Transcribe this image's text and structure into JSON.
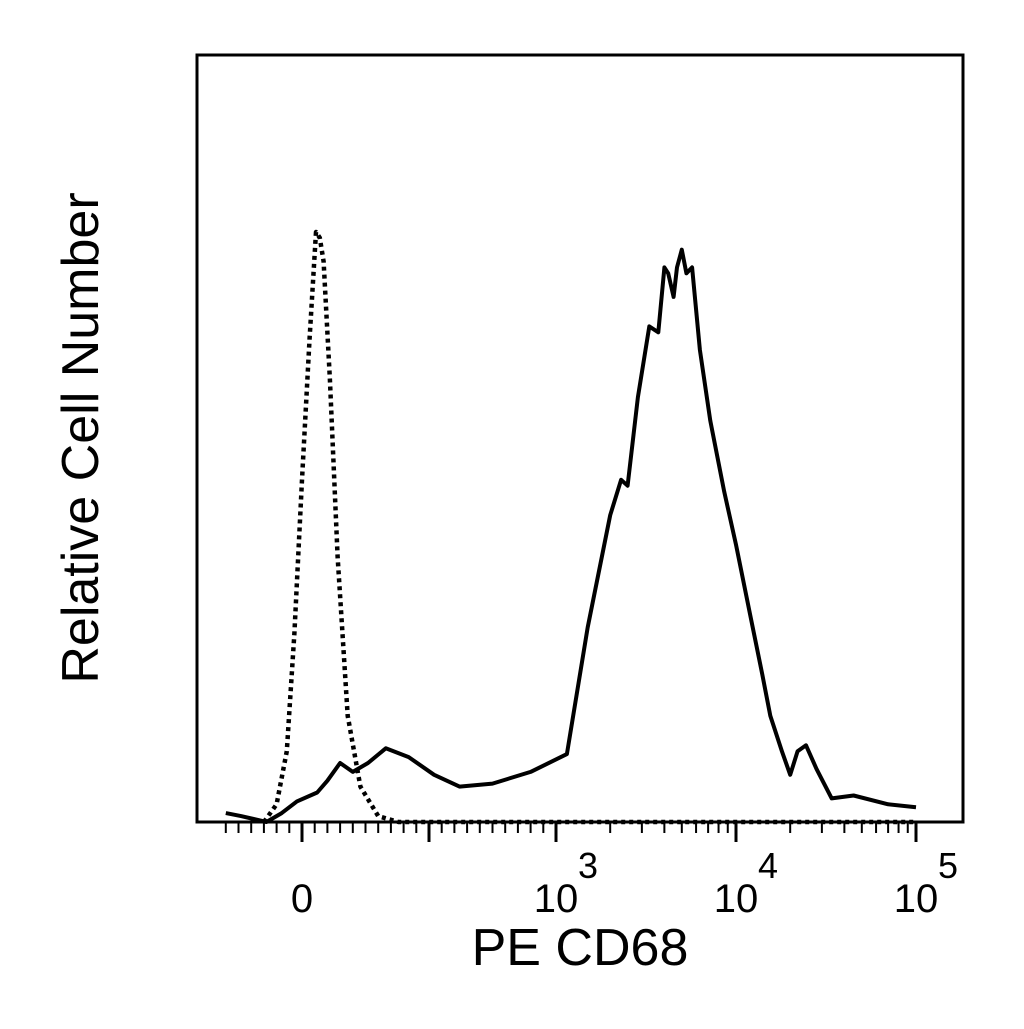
{
  "chart_data": {
    "type": "line",
    "title": "",
    "xlabel": "PE CD68",
    "ylabel": "Relative Cell Number",
    "x_scale": "biexponential (log above 10^3)",
    "xlim": [
      -300,
      100000
    ],
    "ylim": [
      0,
      100
    ],
    "grid": false,
    "legend": "none",
    "x_tick_labels": [
      {
        "value": 0,
        "base": "0",
        "exp": ""
      },
      {
        "value": 1000,
        "base": "10",
        "exp": "3"
      },
      {
        "value": 10000,
        "base": "10",
        "exp": "4"
      },
      {
        "value": 100000,
        "base": "10",
        "exp": "5"
      }
    ],
    "series": [
      {
        "style": "dotted",
        "points": [
          [
            -150,
            0
          ],
          [
            -100,
            3
          ],
          [
            -60,
            12
          ],
          [
            -30,
            32
          ],
          [
            0,
            58
          ],
          [
            30,
            82
          ],
          [
            55,
            100
          ],
          [
            70,
            99
          ],
          [
            85,
            95
          ],
          [
            110,
            75
          ],
          [
            140,
            45
          ],
          [
            180,
            18
          ],
          [
            230,
            6
          ],
          [
            300,
            1
          ],
          [
            380,
            0
          ],
          [
            100000,
            0
          ]
        ]
      },
      {
        "style": "solid",
        "points": [
          [
            -300,
            1.5
          ],
          [
            -240,
            1
          ],
          [
            -190,
            0.5
          ],
          [
            -140,
            0
          ],
          [
            -80,
            1.5
          ],
          [
            -20,
            3.5
          ],
          [
            60,
            5
          ],
          [
            100,
            7
          ],
          [
            150,
            10
          ],
          [
            200,
            8.5
          ],
          [
            260,
            10
          ],
          [
            330,
            12.5
          ],
          [
            420,
            11
          ],
          [
            520,
            8
          ],
          [
            620,
            6
          ],
          [
            750,
            6.5
          ],
          [
            900,
            8.5
          ],
          [
            1150,
            11.5
          ],
          [
            1500,
            33
          ],
          [
            2000,
            52
          ],
          [
            2300,
            58
          ],
          [
            2500,
            57
          ],
          [
            2850,
            72
          ],
          [
            3300,
            84
          ],
          [
            3700,
            83
          ],
          [
            4000,
            94
          ],
          [
            4200,
            93
          ],
          [
            4500,
            89
          ],
          [
            4700,
            94
          ],
          [
            5000,
            97
          ],
          [
            5300,
            93
          ],
          [
            5700,
            94
          ],
          [
            6300,
            80
          ],
          [
            7200,
            68
          ],
          [
            8600,
            56
          ],
          [
            10000,
            47
          ],
          [
            12000,
            35
          ],
          [
            14000,
            25
          ],
          [
            15500,
            18
          ],
          [
            18000,
            12
          ],
          [
            20000,
            8
          ],
          [
            22000,
            12
          ],
          [
            24500,
            13
          ],
          [
            28000,
            9
          ],
          [
            34000,
            4
          ],
          [
            45000,
            4.5
          ],
          [
            70000,
            3
          ],
          [
            100000,
            2.5
          ]
        ]
      }
    ]
  }
}
